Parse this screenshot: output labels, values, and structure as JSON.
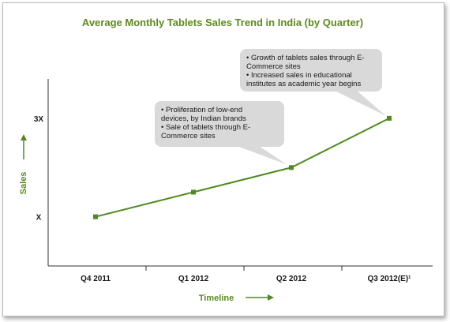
{
  "chart_data": {
    "type": "line",
    "title": "Average Monthly Tablets Sales Trend in India (by Quarter)",
    "xlabel": "Timeline",
    "ylabel": "Sales",
    "categories": [
      "Q4 2011",
      "Q1 2012",
      "Q2 2012",
      "Q3 2012(E)¹"
    ],
    "y_tick_labels": [
      {
        "label": "X",
        "value": 1
      },
      {
        "label": "3X",
        "value": 3
      }
    ],
    "ylim": [
      0,
      3.8
    ],
    "series": [
      {
        "values": [
          1.0,
          1.5,
          2.0,
          3.0
        ]
      }
    ],
    "grid": false,
    "colors": {
      "line": "#4e8a1e",
      "marker": "#4e8a1e",
      "title": "#5c8a1f",
      "callout_bg": "#d9d9d9"
    },
    "annotations": [
      {
        "point_index": 2,
        "lines": [
          "• Proliferation of low-end",
          "  devices, by Indian brands",
          "• Sale of tablets through E-",
          "  Commerce sites"
        ]
      },
      {
        "point_index": 3,
        "lines": [
          "• Growth of tablets sales through E-",
          "  Commerce sites",
          "• Increased sales in educational",
          "  institutes as academic year begins"
        ]
      }
    ]
  }
}
